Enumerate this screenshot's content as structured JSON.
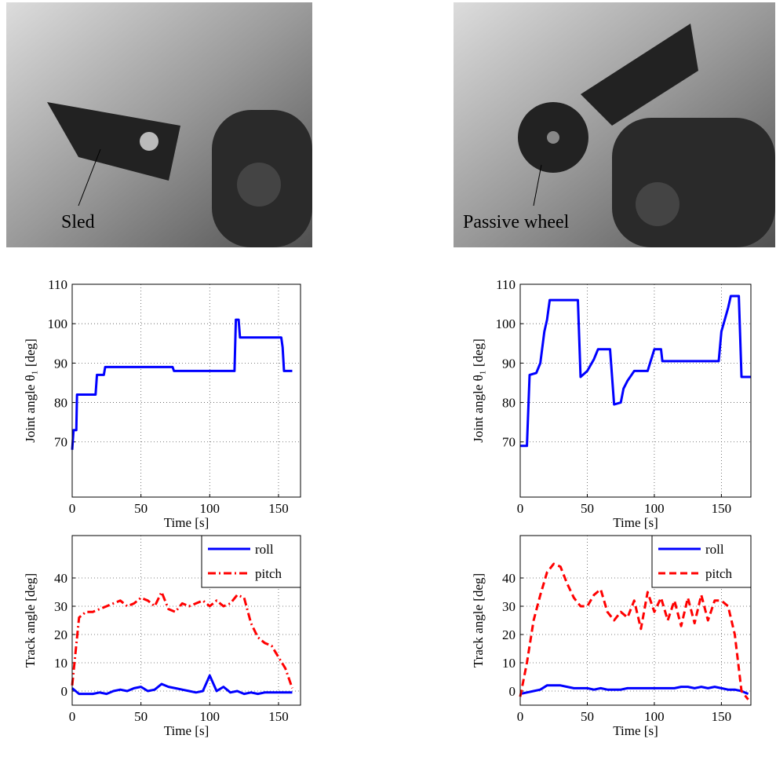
{
  "photos": [
    {
      "label": "Sled"
    },
    {
      "label": "Passive wheel"
    }
  ],
  "chart_data": [
    {
      "type": "line",
      "xlabel": "Time [s]",
      "ylabel": "Joint angle θ₁ [deg]",
      "xlim": [
        0,
        166
      ],
      "ylim": [
        56,
        110
      ],
      "xticks": [
        0,
        50,
        100,
        150
      ],
      "yticks": [
        70,
        80,
        90,
        100,
        110
      ],
      "grid": true,
      "x": [
        0,
        1,
        3,
        3.5,
        17,
        18,
        23,
        24,
        73,
        74,
        118,
        119,
        121,
        122,
        152,
        153,
        154,
        160
      ],
      "series": [
        {
          "color": "#0000ff",
          "dash": "solid",
          "values": [
            68,
            73,
            73,
            82,
            82,
            87,
            87,
            89,
            89,
            88,
            88,
            101,
            101,
            96.5,
            96.5,
            94,
            88,
            88
          ]
        }
      ]
    },
    {
      "type": "line",
      "xlabel": "Time [s]",
      "ylabel": "Joint angle θ₁ [deg]",
      "xlim": [
        0,
        172
      ],
      "ylim": [
        56,
        110
      ],
      "xticks": [
        0,
        50,
        100,
        150
      ],
      "yticks": [
        70,
        80,
        90,
        100,
        110
      ],
      "grid": true,
      "x": [
        0,
        5,
        7,
        12,
        15,
        18,
        20,
        22,
        43,
        45,
        50,
        55,
        58,
        67,
        70,
        75,
        77,
        80,
        85,
        95,
        100,
        105,
        106,
        148,
        150,
        155,
        157,
        163,
        165,
        172
      ],
      "series": [
        {
          "color": "#0000ff",
          "dash": "solid",
          "values": [
            69,
            69,
            87,
            87.5,
            90,
            98,
            101,
            106,
            106,
            86.5,
            88,
            91,
            93.5,
            93.5,
            79.5,
            80,
            83.5,
            85.5,
            88,
            88,
            93.5,
            93.5,
            90.5,
            90.5,
            98,
            104,
            107,
            107,
            86.5,
            86.5
          ]
        }
      ]
    },
    {
      "type": "line",
      "xlabel": "Time [s]",
      "ylabel": "Track angle [deg]",
      "xlim": [
        0,
        166
      ],
      "ylim": [
        -5,
        55
      ],
      "xticks": [
        0,
        50,
        100,
        150
      ],
      "yticks": [
        0,
        10,
        20,
        30,
        40
      ],
      "grid": true,
      "legend": "upper right",
      "x": [
        0,
        5,
        10,
        15,
        20,
        25,
        30,
        35,
        40,
        45,
        50,
        55,
        60,
        65,
        70,
        75,
        80,
        85,
        90,
        95,
        100,
        105,
        110,
        115,
        120,
        125,
        130,
        135,
        140,
        145,
        150,
        155,
        160
      ],
      "series": [
        {
          "name": "roll",
          "color": "#0000ff",
          "dash": "solid",
          "values": [
            1,
            -1,
            -1,
            -1,
            -0.5,
            -1,
            0,
            0.5,
            0,
            1,
            1.5,
            0,
            0.5,
            2.5,
            1.5,
            1,
            0.5,
            0,
            -0.5,
            0,
            5.5,
            0,
            1.5,
            -0.5,
            0,
            -1,
            -0.5,
            -1,
            -0.5,
            -0.5,
            -0.5,
            -0.5,
            -0.5
          ]
        },
        {
          "name": "pitch",
          "color": "#ff0000",
          "dash": "dash-dot",
          "values": [
            2,
            26,
            28,
            28,
            29,
            30,
            31,
            32,
            30,
            31,
            33,
            32,
            30,
            35,
            29,
            28,
            31,
            30,
            31,
            32,
            30,
            32,
            30,
            31,
            34,
            33,
            24,
            19,
            17,
            16,
            12,
            8,
            1
          ]
        }
      ]
    },
    {
      "type": "line",
      "xlabel": "Time [s]",
      "ylabel": "Track angle [deg]",
      "xlim": [
        0,
        172
      ],
      "ylim": [
        -5,
        55
      ],
      "xticks": [
        0,
        50,
        100,
        150
      ],
      "yticks": [
        0,
        10,
        20,
        30,
        40
      ],
      "grid": true,
      "legend": "upper right",
      "x": [
        0,
        5,
        10,
        15,
        20,
        25,
        30,
        35,
        40,
        45,
        50,
        55,
        60,
        65,
        70,
        75,
        80,
        85,
        90,
        95,
        100,
        105,
        110,
        115,
        120,
        125,
        130,
        135,
        140,
        145,
        150,
        155,
        160,
        165,
        170
      ],
      "series": [
        {
          "name": "roll",
          "color": "#0000ff",
          "dash": "solid",
          "values": [
            -1,
            -0.5,
            0,
            0.5,
            2,
            2,
            2,
            1.5,
            1,
            1,
            1,
            0.5,
            1,
            0.5,
            0.5,
            0.5,
            1,
            1,
            1,
            1,
            1,
            1,
            1,
            1,
            1.5,
            1.5,
            1,
            1.5,
            1,
            1.5,
            1,
            0.5,
            0.5,
            0,
            -1
          ]
        },
        {
          "name": "pitch",
          "color": "#ff0000",
          "dash": "dashed",
          "values": [
            -2,
            10,
            25,
            34,
            42,
            45,
            44,
            38,
            33,
            30,
            30,
            34,
            36,
            28,
            25,
            28,
            26,
            32,
            22,
            35,
            28,
            33,
            25,
            32,
            23,
            33,
            24,
            34,
            25,
            32,
            32,
            30,
            20,
            0,
            -3
          ]
        }
      ]
    }
  ]
}
